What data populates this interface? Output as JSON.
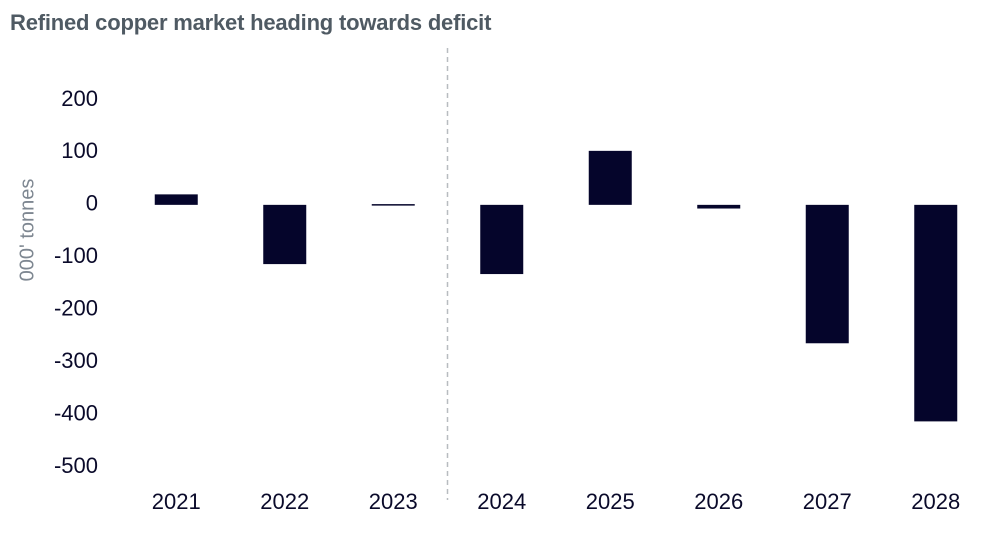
{
  "chart_data": {
    "type": "bar",
    "title": "Refined copper market heading towards deficit",
    "ylabel": "000' tonnes",
    "xlabel": "",
    "categories": [
      "2021",
      "2022",
      "2023",
      "2024",
      "2025",
      "2026",
      "2027",
      "2028"
    ],
    "values": [
      20,
      -113,
      2,
      -132,
      103,
      -7,
      -264,
      -413
    ],
    "ylim": [
      -500,
      200
    ],
    "yticks": [
      200,
      100,
      0,
      -100,
      -200,
      -300,
      -400,
      -500
    ],
    "grid": false,
    "legend": "none",
    "annotations": [
      {
        "type": "dashed-divider",
        "between": [
          "2023",
          "2024"
        ]
      }
    ],
    "colors": {
      "bar": "#05052b",
      "divider": "#b8bcc0",
      "title": "#4f5a63",
      "axis_title": "#7e8791",
      "tick": "#0a0a2a"
    }
  }
}
